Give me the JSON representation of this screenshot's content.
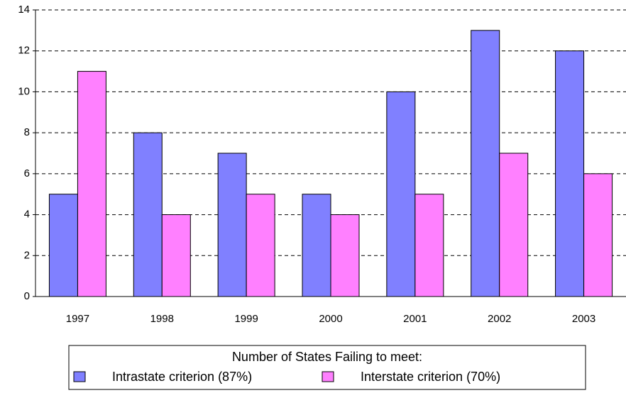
{
  "chart_data": {
    "type": "bar",
    "categories": [
      "1997",
      "1998",
      "1999",
      "2000",
      "2001",
      "2002",
      "2003"
    ],
    "series": [
      {
        "name": "Intrastate criterion (87%)",
        "color": "#8080ff",
        "values": [
          5,
          8,
          7,
          5,
          10,
          13,
          12
        ]
      },
      {
        "name": "Interstate criterion (70%)",
        "color": "#ff80ff",
        "values": [
          11,
          4,
          5,
          4,
          5,
          7,
          6
        ]
      }
    ],
    "legend_title": "Number of States Failing to meet:",
    "ylim": [
      0,
      14
    ],
    "yticks": [
      0,
      2,
      4,
      6,
      8,
      10,
      12,
      14
    ],
    "grid": true,
    "legend": "bottom"
  }
}
